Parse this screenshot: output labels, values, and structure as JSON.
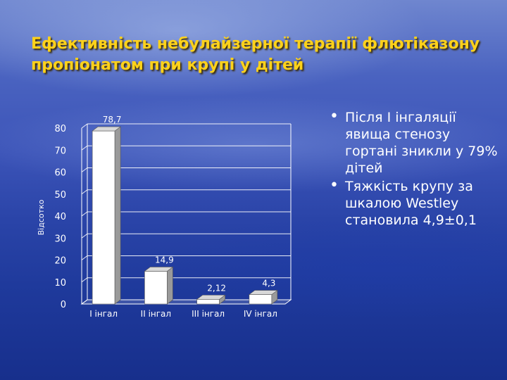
{
  "slide": {
    "title": "Ефективність небулайзерної терапії флютіказону пропіонатом при крупі у дітей"
  },
  "bullets": [
    "Після I інгаляції явища стенозу гортані зникли у 79% дітей",
    "Тяжкість крупу за шкалою Westley становила 4,9±0,1"
  ],
  "chart_data": {
    "type": "bar",
    "categories": [
      "I інгал",
      "II інгал",
      "III інгал",
      "IV інгал"
    ],
    "values": [
      78.7,
      14.9,
      2.12,
      4.3
    ],
    "value_labels": [
      "78,7",
      "14,9",
      "2,12",
      "4,3"
    ],
    "ylabel": "Відсотко",
    "ylim": [
      0,
      80
    ],
    "yticks": [
      0,
      10,
      20,
      30,
      40,
      50,
      60,
      70,
      80
    ],
    "grid": true,
    "style": "3d-column",
    "colors": {
      "bar": "#ffffff",
      "bar_side": "#9a9a9a",
      "bar_top": "#d8d8d8",
      "grid": "#ffffff"
    }
  }
}
